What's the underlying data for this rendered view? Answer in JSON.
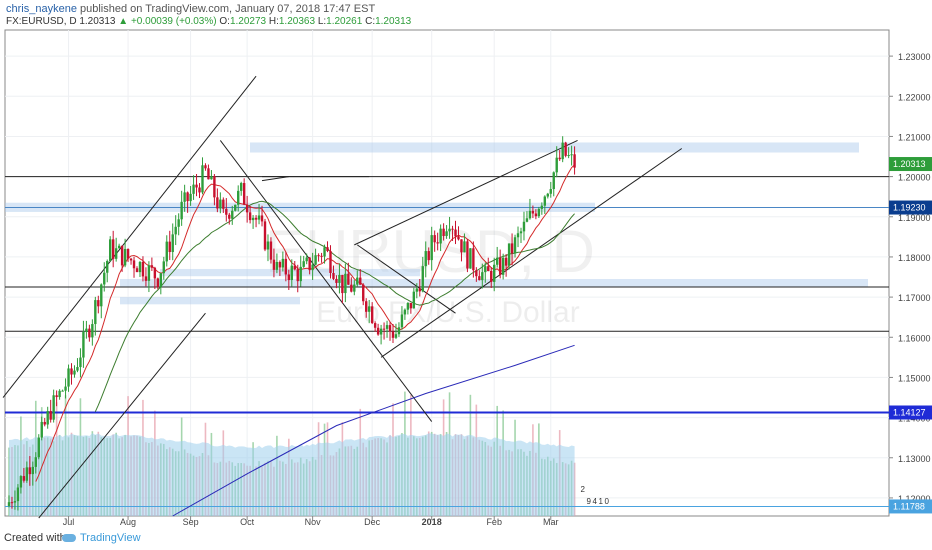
{
  "header": {
    "author": "chris_naykene",
    "published": "published on TradingView.com, January 07, 2018 17:47 EST",
    "symbol": "FX:EURUSD, D",
    "last": "1.20313",
    "change": "+0.00039 (+0.03%)",
    "o_label": "O:",
    "o": "1.20273",
    "h_label": "H:",
    "h": "1.20363",
    "l_label": "L:",
    "l": "1.20261",
    "c_label": "C:",
    "c": "1.20313"
  },
  "footer": {
    "created_with": "Created with",
    "brand": "TradingView"
  },
  "watermark": {
    "symbol": "EURUSD, D",
    "name": "Euro FX/U.S. Dollar"
  },
  "chart_data": {
    "type": "candlestick",
    "x_tick_labels": [
      "Jul",
      "Aug",
      "Sep",
      "Oct",
      "Nov",
      "Dec",
      "2018",
      "Feb",
      "Mar"
    ],
    "y_ticks": [
      1.23,
      1.22,
      1.21,
      1.2,
      1.19,
      1.18,
      1.17,
      1.16,
      1.15,
      1.14,
      1.13,
      1.12
    ],
    "y_tick_labels": [
      "1.23000",
      "1.22000",
      "1.21000",
      "1.20000",
      "1.19000",
      "1.18000",
      "1.17000",
      "1.16000",
      "1.15000",
      "1.14000",
      "1.13000",
      "1.12000"
    ],
    "ylim": [
      1.1155,
      1.2365
    ],
    "price_tags": [
      {
        "value": 1.20313,
        "label": "1.20313",
        "color": "#2e9d3a"
      },
      {
        "value": 1.1923,
        "label": "1.19230",
        "color": "#0a3d8f"
      },
      {
        "value": 1.14127,
        "label": "1.14127",
        "color": "#1f2bd6"
      },
      {
        "value": 1.11788,
        "label": "1.11788",
        "color": "#4aa3e0"
      }
    ],
    "horizontal_lines": [
      {
        "value": 1.2,
        "color": "#222"
      },
      {
        "value": 1.1923,
        "color": "#4a86c5"
      },
      {
        "value": 1.1725,
        "color": "#222"
      },
      {
        "value": 1.1615,
        "color": "#222"
      },
      {
        "value": 1.14127,
        "color": "#1f2bd6"
      },
      {
        "value": 1.11788,
        "color": "#4aa3e0"
      }
    ],
    "candle_colors": {
      "up": "#2e9d3a",
      "down": "#c8102e"
    },
    "ma_colors": {
      "fast": "#d42a2a",
      "mid": "#3d7d2f",
      "slow": "#2a2ab8"
    },
    "volume_colors": {
      "area": "#9fd0ec",
      "up": "#7fc58a",
      "down": "#e59aa7"
    },
    "indicator_markers": [
      "2",
      "9",
      "4",
      "1",
      "0"
    ]
  }
}
